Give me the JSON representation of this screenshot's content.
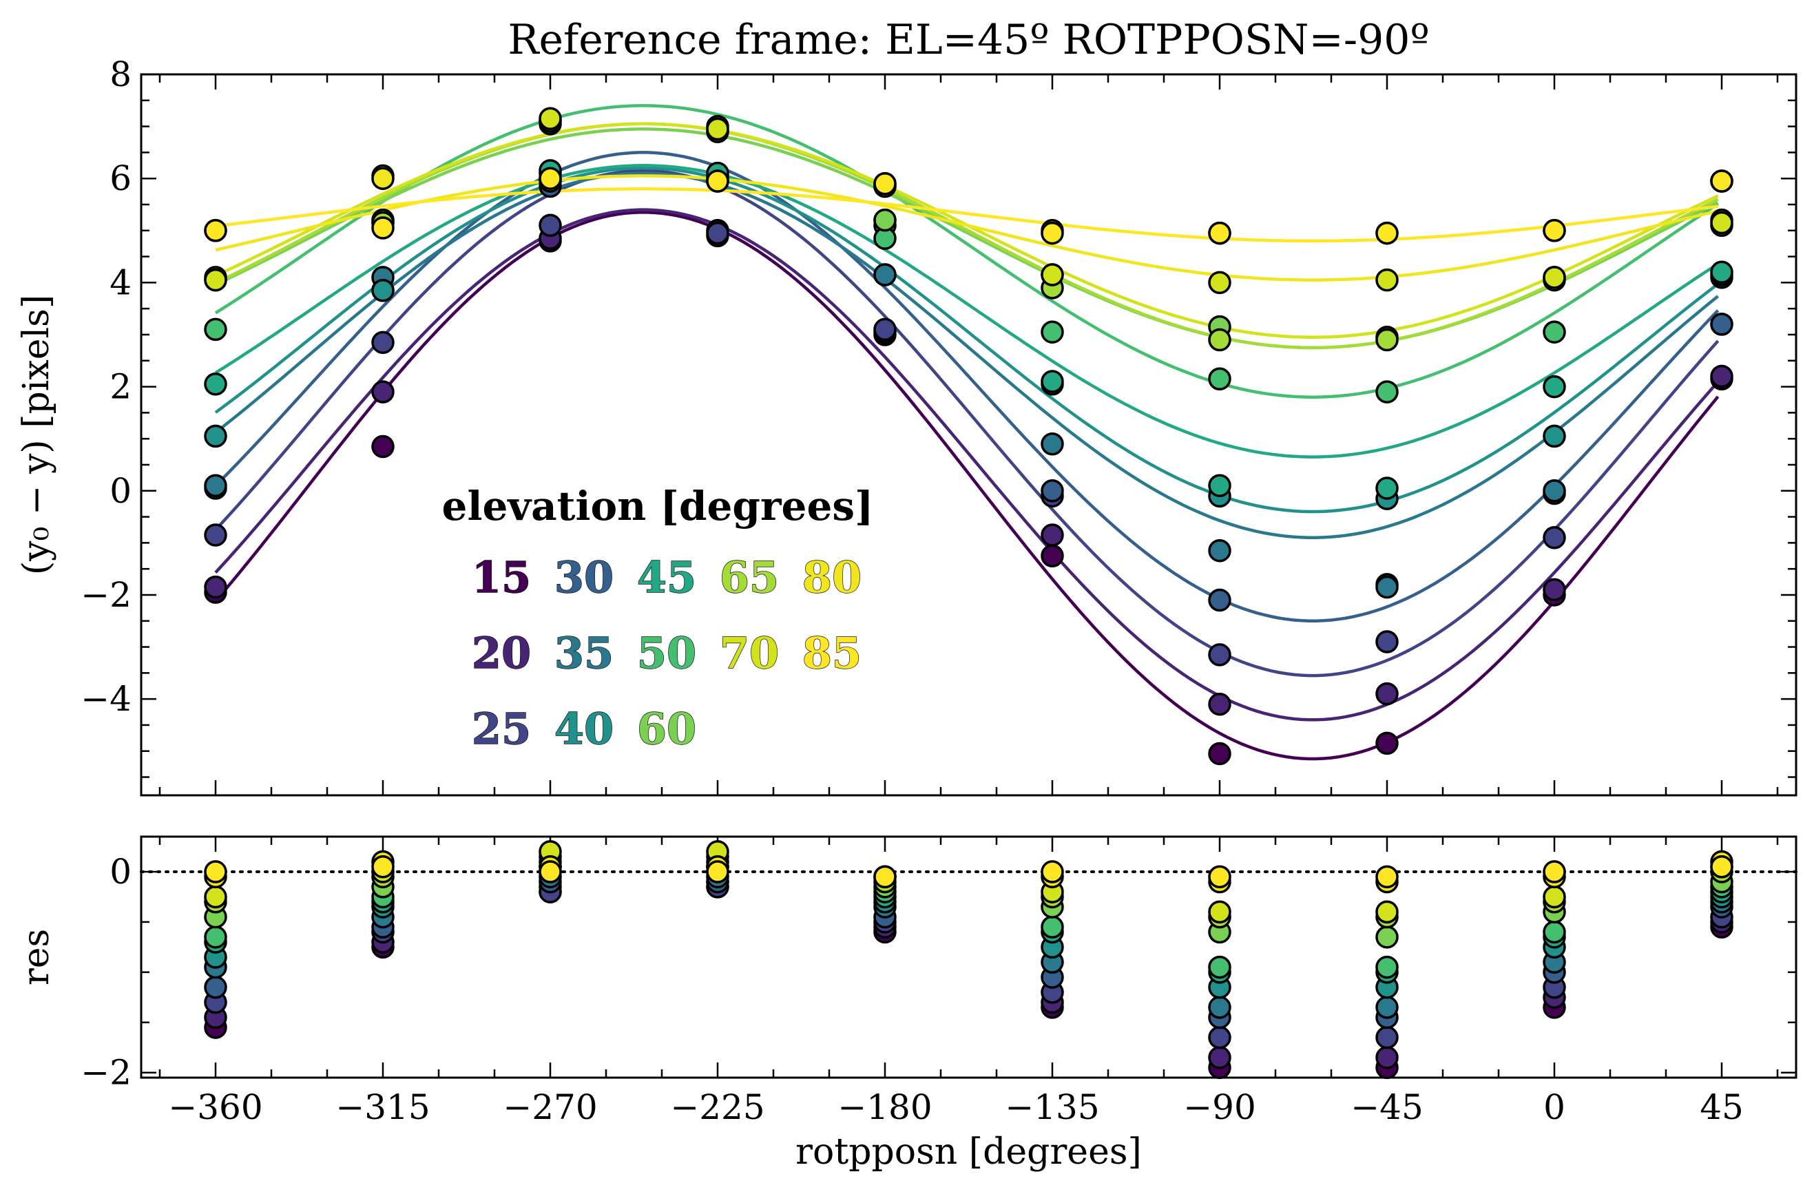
{
  "chart_data": {
    "type": "scatter",
    "title": "Reference frame: EL=45º ROTPPOSN=-90º",
    "xlabel": "rotpposn [degrees]",
    "xlim": [
      -380,
      65
    ],
    "x_ticks": [
      -360,
      -315,
      -270,
      -225,
      -180,
      -135,
      -90,
      -45,
      0,
      45
    ],
    "x_tick_labels": [
      "−360",
      "−315",
      "−270",
      "−225",
      "−180",
      "−135",
      "−90",
      "−45",
      "0",
      "45"
    ],
    "main_panel": {
      "ylabel": "(y₀ − y) [pixels]",
      "ylim": [
        -5.85,
        8.0
      ],
      "y_ticks": [
        -4,
        -2,
        0,
        2,
        4,
        6,
        8
      ],
      "y_tick_labels": [
        "−4",
        "−2",
        "0",
        "2",
        "4",
        "6",
        "8"
      ]
    },
    "residual_panel": {
      "ylabel": "res",
      "ylim": [
        -2.05,
        0.35
      ],
      "y_ticks": [
        -2,
        0
      ],
      "y_tick_labels": [
        "−2",
        "0"
      ],
      "zero_line": "dotted"
    },
    "legend": {
      "title": "elevation [degrees]",
      "columns": [
        [
          "15",
          "20",
          "25"
        ],
        [
          "30",
          "35",
          "40"
        ],
        [
          "45",
          "50",
          "60"
        ],
        [
          "65",
          "70"
        ],
        [
          "80",
          "85"
        ]
      ]
    },
    "x": [
      -360,
      -315,
      -270,
      -225,
      -180,
      -135,
      -90,
      -45,
      0,
      45
    ],
    "series": [
      {
        "name": "15",
        "color": "#440154",
        "values": [
          -1.95,
          0.85,
          4.8,
          4.9,
          3.0,
          -1.25,
          -5.05,
          -4.85,
          -2.0,
          2.15
        ],
        "fit": {
          "offset": 0.1,
          "amplitude": 5.25,
          "peak_x": -245
        },
        "residuals": [
          -1.55,
          -0.75,
          -0.2,
          -0.15,
          -0.6,
          -1.35,
          -1.95,
          -1.95,
          -1.35,
          -0.55
        ]
      },
      {
        "name": "20",
        "color": "#482475",
        "values": [
          -1.85,
          1.9,
          4.85,
          5.0,
          3.05,
          -0.85,
          -4.1,
          -3.9,
          -1.9,
          2.2
        ],
        "fit": {
          "offset": 0.5,
          "amplitude": 4.9,
          "peak_x": -245
        },
        "residuals": [
          -1.45,
          -0.7,
          -0.15,
          -0.1,
          -0.55,
          -1.3,
          -1.85,
          -1.85,
          -1.25,
          -0.5
        ]
      },
      {
        "name": "25",
        "color": "#414487",
        "values": [
          -0.85,
          2.85,
          5.1,
          4.95,
          3.1,
          -0.1,
          -3.15,
          -2.9,
          -0.9,
          3.2
        ],
        "fit": {
          "offset": 1.3,
          "amplitude": 4.85,
          "peak_x": -245
        },
        "residuals": [
          -1.3,
          -0.6,
          -0.2,
          -0.15,
          -0.5,
          -1.2,
          -1.65,
          -1.65,
          -1.15,
          -0.45
        ]
      },
      {
        "name": "30",
        "color": "#355f8d",
        "values": [
          0.05,
          3.85,
          5.85,
          5.95,
          4.15,
          0.0,
          -2.1,
          -1.8,
          -0.05,
          3.2
        ],
        "fit": {
          "offset": 2.0,
          "amplitude": 4.5,
          "peak_x": -245
        },
        "residuals": [
          -1.15,
          -0.55,
          -0.1,
          -0.1,
          -0.45,
          -1.05,
          -1.45,
          -1.45,
          -1.0,
          -0.35
        ]
      },
      {
        "name": "35",
        "color": "#2a788e",
        "values": [
          0.1,
          4.1,
          6.1,
          6.05,
          4.15,
          0.9,
          -1.15,
          -1.85,
          0.0,
          4.1
        ],
        "fit": {
          "offset": 2.6,
          "amplitude": 3.5,
          "peak_x": -245
        },
        "residuals": [
          -0.95,
          -0.45,
          -0.05,
          -0.05,
          -0.35,
          -0.9,
          -1.35,
          -1.35,
          -0.9,
          -0.3
        ]
      },
      {
        "name": "40",
        "color": "#21918c",
        "values": [
          1.05,
          3.85,
          6.0,
          6.0,
          5.2,
          2.05,
          -0.1,
          -0.15,
          1.05,
          4.15
        ],
        "fit": {
          "offset": 2.9,
          "amplitude": 3.3,
          "peak_x": -245
        },
        "residuals": [
          -0.85,
          -0.35,
          0.0,
          0.0,
          -0.3,
          -0.75,
          -1.15,
          -1.15,
          -0.75,
          -0.25
        ]
      },
      {
        "name": "45",
        "color": "#22a884",
        "values": [
          2.05,
          5.2,
          6.15,
          6.1,
          5.1,
          2.1,
          0.1,
          0.05,
          2.0,
          4.2
        ],
        "fit": {
          "offset": 3.45,
          "amplitude": 2.8,
          "peak_x": -245
        },
        "residuals": [
          -0.7,
          -0.3,
          0.05,
          0.05,
          -0.25,
          -0.6,
          -1.0,
          -1.0,
          -0.65,
          -0.2
        ]
      },
      {
        "name": "50",
        "color": "#44bf70",
        "values": [
          3.1,
          5.15,
          7.05,
          7.0,
          4.85,
          3.05,
          2.15,
          1.9,
          3.05,
          5.1
        ],
        "fit": {
          "offset": 4.6,
          "amplitude": 2.8,
          "peak_x": -245
        },
        "residuals": [
          -0.65,
          -0.25,
          0.05,
          0.05,
          -0.2,
          -0.55,
          -0.95,
          -0.95,
          -0.6,
          -0.15
        ]
      },
      {
        "name": "60",
        "color": "#7ad151",
        "values": [
          4.05,
          5.2,
          7.1,
          6.9,
          5.2,
          4.15,
          3.15,
          2.95,
          4.05,
          5.2
        ],
        "fit": {
          "offset": 4.85,
          "amplitude": 2.1,
          "peak_x": -245
        },
        "residuals": [
          -0.45,
          -0.15,
          0.1,
          0.1,
          -0.15,
          -0.35,
          -0.6,
          -0.65,
          -0.4,
          -0.1
        ]
      },
      {
        "name": "65",
        "color": "#a5db36",
        "values": [
          4.1,
          5.15,
          7.1,
          6.9,
          5.85,
          3.9,
          2.9,
          2.9,
          4.1,
          5.95
        ],
        "fit": {
          "offset": 4.9,
          "amplitude": 2.15,
          "peak_x": -245
        },
        "residuals": [
          -0.3,
          -0.05,
          0.15,
          0.15,
          -0.1,
          -0.25,
          -0.45,
          -0.45,
          -0.3,
          0.0
        ]
      },
      {
        "name": "70",
        "color": "#d2e21b",
        "values": [
          4.05,
          6.05,
          7.15,
          6.95,
          5.9,
          4.15,
          4.0,
          4.05,
          4.1,
          5.15
        ],
        "fit": {
          "offset": 5.0,
          "amplitude": 2.05,
          "peak_x": -245
        },
        "residuals": [
          -0.25,
          0.0,
          0.2,
          0.2,
          -0.05,
          -0.2,
          -0.4,
          -0.4,
          -0.25,
          0.05
        ]
      },
      {
        "name": "80",
        "color": "#f1e51d",
        "values": [
          5.0,
          6.0,
          5.95,
          5.95,
          5.85,
          5.0,
          4.95,
          4.95,
          5.0,
          5.95
        ],
        "fit": {
          "offset": 5.05,
          "amplitude": 1.0,
          "peak_x": -245
        },
        "residuals": [
          -0.05,
          0.1,
          0.05,
          0.05,
          -0.05,
          -0.05,
          -0.1,
          -0.1,
          -0.05,
          0.1
        ]
      },
      {
        "name": "85",
        "color": "#fde725",
        "values": [
          5.0,
          5.05,
          6.0,
          5.95,
          5.9,
          4.95,
          4.95,
          4.95,
          5.0,
          5.95
        ],
        "fit": {
          "offset": 5.3,
          "amplitude": 0.5,
          "peak_x": -245
        },
        "residuals": [
          0.0,
          0.05,
          0.0,
          0.0,
          -0.05,
          0.0,
          -0.05,
          -0.05,
          0.0,
          0.05
        ]
      }
    ]
  }
}
